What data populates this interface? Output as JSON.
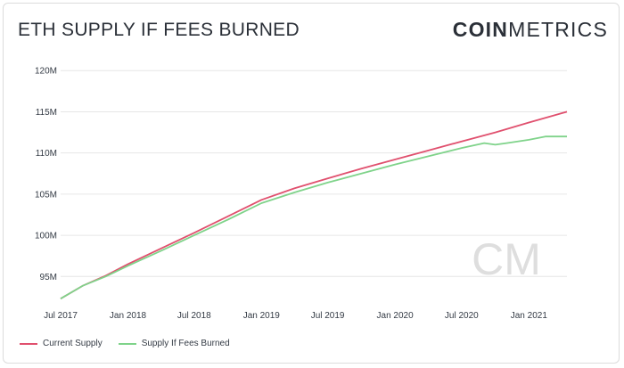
{
  "header": {
    "title": "ETH SUPPLY IF FEES BURNED",
    "brand_bold": "COIN",
    "brand_light": "METRICS"
  },
  "watermark": "CM",
  "colors": {
    "current": "#e0506e",
    "burned": "#7fd38a",
    "grid": "#e6e6e6",
    "text": "#333a44"
  },
  "chart_data": {
    "type": "line",
    "title": "ETH SUPPLY IF FEES BURNED",
    "xlabel": "",
    "ylabel": "",
    "ylim": [
      92,
      121
    ],
    "xlim": [
      "2017-07-01",
      "2021-04-15"
    ],
    "y_ticks": [
      95,
      100,
      105,
      110,
      115,
      120
    ],
    "y_tick_labels": [
      "95M",
      "100M",
      "105M",
      "110M",
      "115M",
      "120M"
    ],
    "x_ticks": [
      "2017-07-01",
      "2018-01-01",
      "2018-07-01",
      "2019-01-01",
      "2019-07-01",
      "2020-01-01",
      "2020-07-01",
      "2021-01-01"
    ],
    "x_tick_labels": [
      "Jul 2017",
      "Jan 2018",
      "Jul 2018",
      "Jan 2019",
      "Jul 2019",
      "Jan 2020",
      "Jul 2020",
      "Jan 2021"
    ],
    "grid": true,
    "legend": "bottom-left",
    "series": [
      {
        "name": "Current Supply",
        "color": "#e0506e",
        "x": [
          "2017-07-01",
          "2017-09-01",
          "2017-11-01",
          "2018-01-01",
          "2018-04-01",
          "2018-07-01",
          "2018-10-01",
          "2019-01-01",
          "2019-04-01",
          "2019-07-01",
          "2019-10-01",
          "2020-01-01",
          "2020-04-01",
          "2020-07-01",
          "2020-10-01",
          "2021-01-01",
          "2021-04-15"
        ],
        "values": [
          92.3,
          93.9,
          95.1,
          96.5,
          98.4,
          100.3,
          102.3,
          104.3,
          105.7,
          106.9,
          108.1,
          109.2,
          110.3,
          111.4,
          112.5,
          113.7,
          115.0
        ]
      },
      {
        "name": "Supply If Fees Burned",
        "color": "#7fd38a",
        "x": [
          "2017-07-01",
          "2017-09-01",
          "2017-11-01",
          "2018-01-01",
          "2018-04-01",
          "2018-07-01",
          "2018-10-01",
          "2019-01-01",
          "2019-04-01",
          "2019-07-01",
          "2019-10-01",
          "2020-01-01",
          "2020-04-01",
          "2020-07-01",
          "2020-09-01",
          "2020-10-01",
          "2020-11-01",
          "2021-01-01",
          "2021-02-15",
          "2021-04-15"
        ],
        "values": [
          92.3,
          93.9,
          95.0,
          96.3,
          98.1,
          100.0,
          101.9,
          103.9,
          105.2,
          106.4,
          107.5,
          108.6,
          109.6,
          110.6,
          111.2,
          111.0,
          111.2,
          111.6,
          112.0,
          112.0
        ]
      }
    ]
  }
}
